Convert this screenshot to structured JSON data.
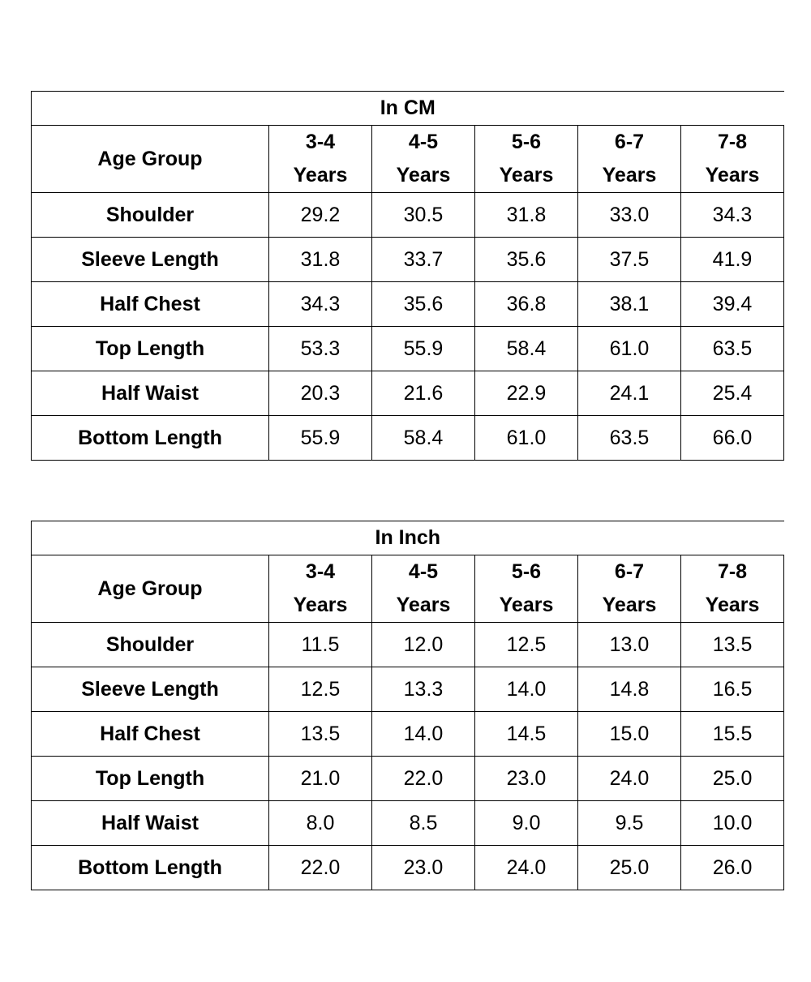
{
  "tables": [
    {
      "title": "In CM",
      "label_header": "Age Group",
      "age_groups": [
        {
          "range": "3-4",
          "unit": "Years"
        },
        {
          "range": "4-5",
          "unit": "Years"
        },
        {
          "range": "5-6",
          "unit": "Years"
        },
        {
          "range": "6-7",
          "unit": "Years"
        },
        {
          "range": "7-8",
          "unit": "Years"
        }
      ],
      "rows": [
        {
          "label": "Shoulder",
          "values": [
            "29.2",
            "30.5",
            "31.8",
            "33.0",
            "34.3"
          ]
        },
        {
          "label": "Sleeve Length",
          "values": [
            "31.8",
            "33.7",
            "35.6",
            "37.5",
            "41.9"
          ]
        },
        {
          "label": "Half Chest",
          "values": [
            "34.3",
            "35.6",
            "36.8",
            "38.1",
            "39.4"
          ]
        },
        {
          "label": "Top Length",
          "values": [
            "53.3",
            "55.9",
            "58.4",
            "61.0",
            "63.5"
          ]
        },
        {
          "label": "Half Waist",
          "values": [
            "20.3",
            "21.6",
            "22.9",
            "24.1",
            "25.4"
          ]
        },
        {
          "label": "Bottom Length",
          "values": [
            "55.9",
            "58.4",
            "61.0",
            "63.5",
            "66.0"
          ]
        }
      ]
    },
    {
      "title": "In Inch",
      "label_header": "Age Group",
      "age_groups": [
        {
          "range": "3-4",
          "unit": "Years"
        },
        {
          "range": "4-5",
          "unit": "Years"
        },
        {
          "range": "5-6",
          "unit": "Years"
        },
        {
          "range": "6-7",
          "unit": "Years"
        },
        {
          "range": "7-8",
          "unit": "Years"
        }
      ],
      "rows": [
        {
          "label": "Shoulder",
          "values": [
            "11.5",
            "12.0",
            "12.5",
            "13.0",
            "13.5"
          ]
        },
        {
          "label": "Sleeve Length",
          "values": [
            "12.5",
            "13.3",
            "14.0",
            "14.8",
            "16.5"
          ]
        },
        {
          "label": "Half Chest",
          "values": [
            "13.5",
            "14.0",
            "14.5",
            "15.0",
            "15.5"
          ]
        },
        {
          "label": "Top Length",
          "values": [
            "21.0",
            "22.0",
            "23.0",
            "24.0",
            "25.0"
          ]
        },
        {
          "label": "Half Waist",
          "values": [
            "8.0",
            "8.5",
            "9.0",
            "9.5",
            "10.0"
          ]
        },
        {
          "label": "Bottom Length",
          "values": [
            "22.0",
            "23.0",
            "24.0",
            "25.0",
            "26.0"
          ]
        }
      ]
    }
  ]
}
